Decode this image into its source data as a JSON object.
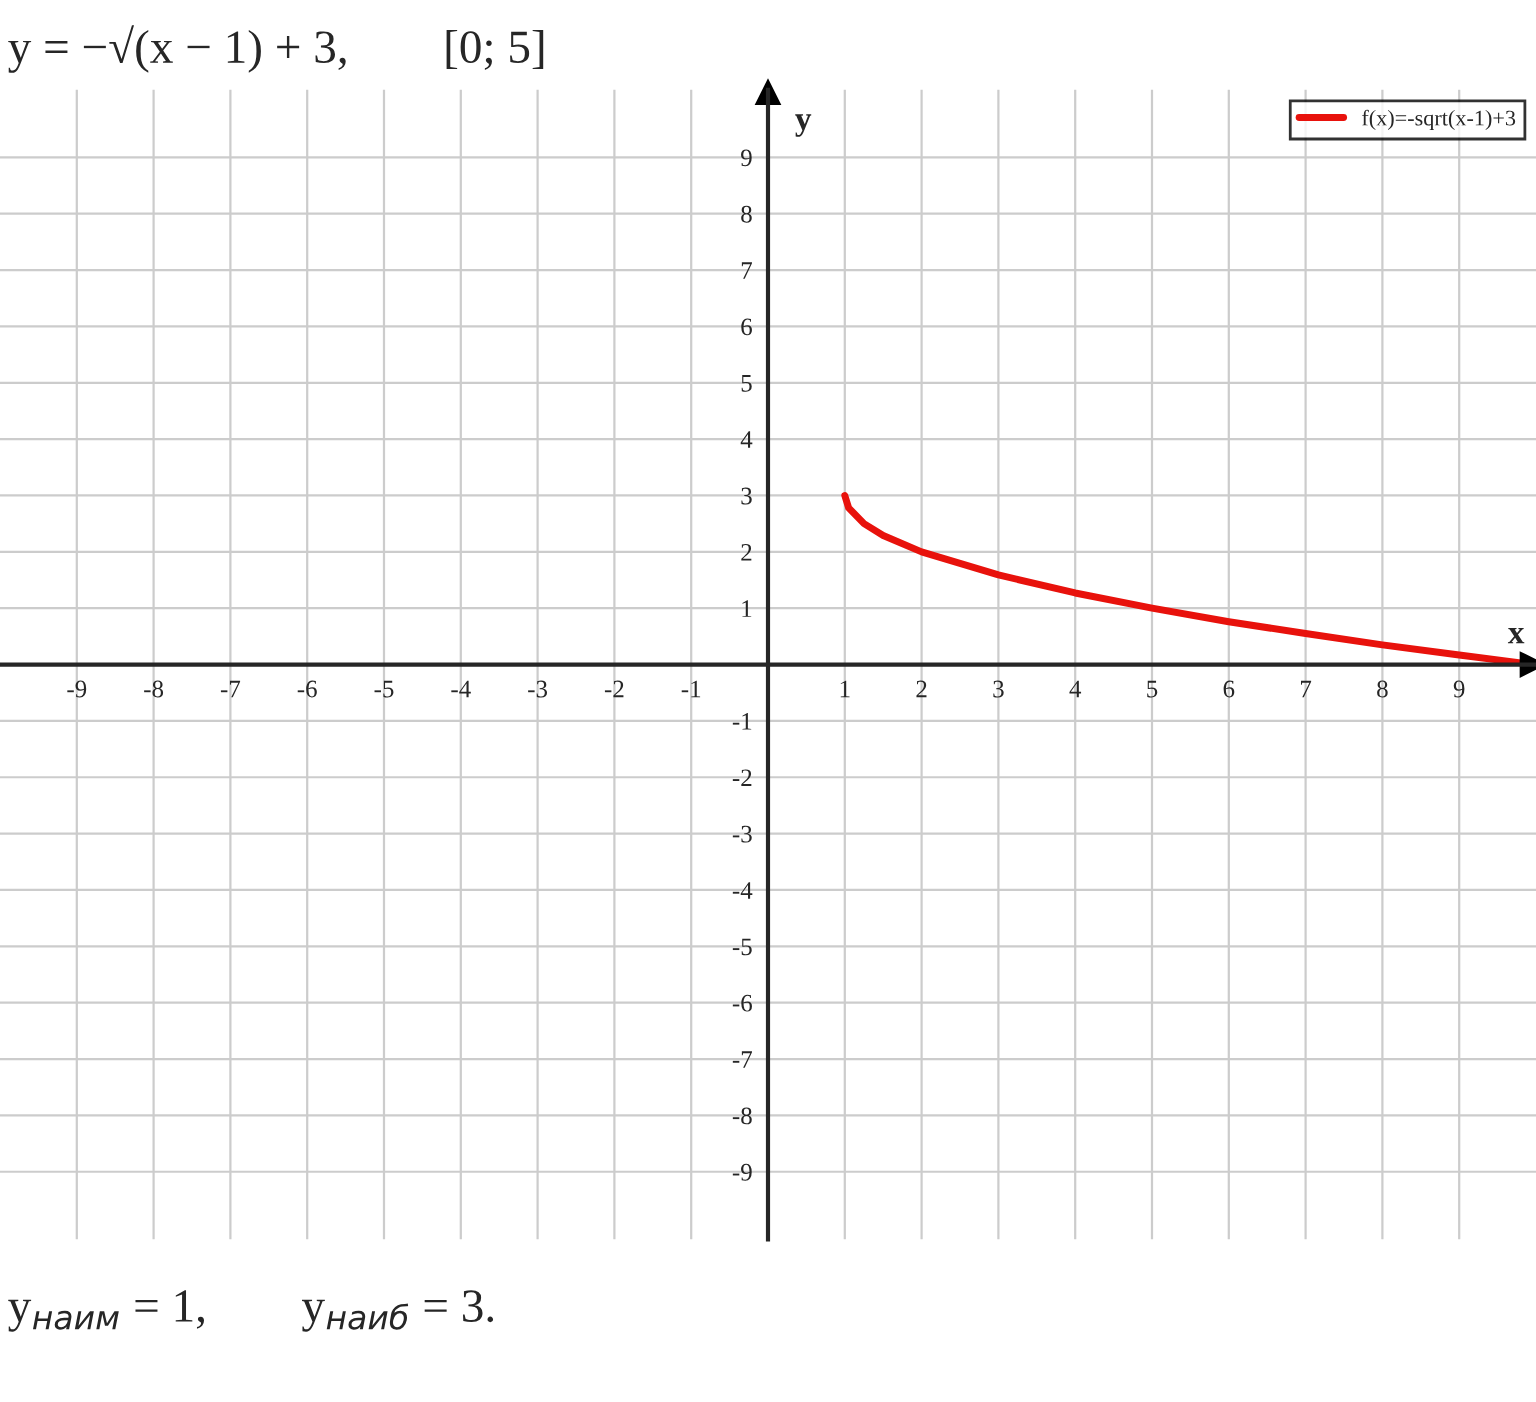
{
  "chart_data": {
    "type": "line",
    "title": "y = −√(x − 1) + 3,        [0; 5]",
    "xlabel": "x",
    "ylabel": "y",
    "annotations": [
      "y$_{наим}$ = 1,        y$_{наиб}$ = 3."
    ],
    "x": [
      1,
      1.05,
      1.25,
      1.5,
      2,
      3,
      4,
      5,
      6,
      7,
      8,
      9,
      9.8
    ],
    "series": [
      {
        "name": "f(x)=-sqrt(x-1)+3",
        "color": "#e8120c",
        "values": [
          3,
          2.78,
          2.5,
          2.29,
          2,
          1.59,
          1.27,
          1,
          0.76,
          0.55,
          0.35,
          0.17,
          0.03
        ]
      }
    ],
    "xlim": [
      -10,
      10
    ],
    "ylim": [
      -10.2,
      10.2
    ],
    "xticks": [
      -9,
      -8,
      -7,
      -6,
      -5,
      -4,
      -3,
      -2,
      -1,
      1,
      2,
      3,
      4,
      5,
      6,
      7,
      8,
      9
    ],
    "yticks": [
      -9,
      -8,
      -7,
      -6,
      -5,
      -4,
      -3,
      -2,
      -1,
      1,
      2,
      3,
      4,
      5,
      6,
      7,
      8,
      9
    ],
    "grid": true,
    "legend": "top right",
    "marker": "none",
    "line_style": "solid"
  }
}
